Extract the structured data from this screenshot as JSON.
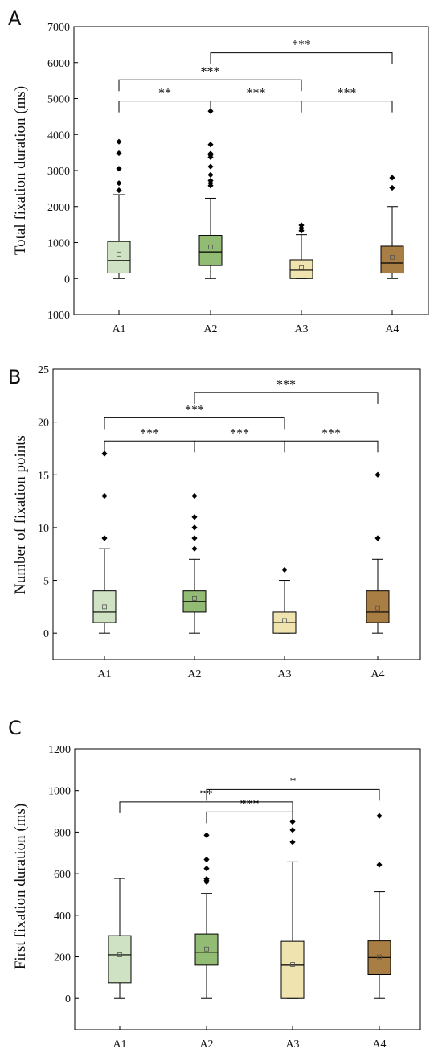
{
  "figure": {
    "colors": {
      "A1": "#cfe3c4",
      "A2": "#92bb73",
      "A3": "#efe3b0",
      "A4": "#a97e44",
      "outlier": "#000000",
      "axis": "#000000"
    }
  },
  "chart_data": [
    {
      "type": "box",
      "panel": "A",
      "ylabel": "Total fixation duration (ms)",
      "ylim": [
        -1000,
        7000
      ],
      "yticks": [
        "−1000",
        "0",
        "1000",
        "2000",
        "3000",
        "4000",
        "5000",
        "6000",
        "7000"
      ],
      "ytick_values": [
        -1000,
        0,
        1000,
        2000,
        3000,
        4000,
        5000,
        6000,
        7000
      ],
      "categories": [
        "A1",
        "A2",
        "A3",
        "A4"
      ],
      "boxes": [
        {
          "min": 0,
          "q1": 150,
          "median": 500,
          "q3": 1030,
          "max": 2330,
          "mean": 680,
          "outliers": [
            2450,
            2650,
            3050,
            3480,
            3800
          ]
        },
        {
          "min": 0,
          "q1": 360,
          "median": 740,
          "q3": 1200,
          "max": 2230,
          "mean": 880,
          "outliers": [
            2580,
            2650,
            2720,
            2880,
            3110,
            3370,
            3430,
            3470,
            3720,
            4650
          ]
        },
        {
          "min": 0,
          "q1": 0,
          "median": 230,
          "q3": 520,
          "max": 1220,
          "mean": 300,
          "outliers": [
            1330,
            1400,
            1480
          ]
        },
        {
          "min": 0,
          "q1": 150,
          "median": 430,
          "q3": 900,
          "max": 2000,
          "mean": 590,
          "outliers": [
            2520,
            2800
          ]
        }
      ],
      "significance": [
        {
          "from": 0,
          "to": 1,
          "label": "**",
          "y": 4930
        },
        {
          "from": 1,
          "to": 2,
          "label": "***",
          "y": 4930
        },
        {
          "from": 2,
          "to": 3,
          "label": "***",
          "y": 4930
        },
        {
          "from": 0,
          "to": 2,
          "label": "***",
          "y": 5520
        },
        {
          "from": 1,
          "to": 3,
          "label": "***",
          "y": 6270
        }
      ]
    },
    {
      "type": "box",
      "panel": "B",
      "ylabel": "Number of fixation points",
      "ylim": [
        -2.5,
        25
      ],
      "yticks": [
        "0",
        "5",
        "10",
        "15",
        "20",
        "25"
      ],
      "ytick_values": [
        0,
        5,
        10,
        15,
        20,
        25
      ],
      "categories": [
        "A1",
        "A2",
        "A3",
        "A4"
      ],
      "boxes": [
        {
          "min": 0,
          "q1": 1,
          "median": 2,
          "q3": 4,
          "max": 8,
          "mean": 2.5,
          "outliers": [
            9,
            13,
            17
          ]
        },
        {
          "min": 0,
          "q1": 2,
          "median": 3,
          "q3": 4,
          "max": 7,
          "mean": 3.3,
          "outliers": [
            8,
            9,
            10,
            11,
            13
          ]
        },
        {
          "min": 0,
          "q1": 0,
          "median": 1,
          "q3": 2,
          "max": 5,
          "mean": 1.2,
          "outliers": [
            6
          ]
        },
        {
          "min": 0,
          "q1": 1,
          "median": 2,
          "q3": 4,
          "max": 7,
          "mean": 2.4,
          "outliers": [
            9,
            15
          ]
        }
      ],
      "significance": [
        {
          "from": 0,
          "to": 1,
          "label": "***",
          "y": 18.2
        },
        {
          "from": 1,
          "to": 2,
          "label": "***",
          "y": 18.2
        },
        {
          "from": 2,
          "to": 3,
          "label": "***",
          "y": 18.2
        },
        {
          "from": 0,
          "to": 2,
          "label": "***",
          "y": 20.4
        },
        {
          "from": 1,
          "to": 3,
          "label": "***",
          "y": 22.8
        }
      ]
    },
    {
      "type": "box",
      "panel": "C",
      "ylabel": "First fixation duration (ms)",
      "ylim": [
        -150,
        1200
      ],
      "yticks": [
        "0",
        "200",
        "400",
        "600",
        "800",
        "1000",
        "1200"
      ],
      "ytick_values": [
        0,
        200,
        400,
        600,
        800,
        1000,
        1200
      ],
      "categories": [
        "A1",
        "A2",
        "A3",
        "A4"
      ],
      "boxes": [
        {
          "min": 0,
          "q1": 75,
          "median": 210,
          "q3": 302,
          "max": 577,
          "mean": 210,
          "outliers": []
        },
        {
          "min": 0,
          "q1": 160,
          "median": 222,
          "q3": 310,
          "max": 505,
          "mean": 238,
          "outliers": [
            560,
            567,
            575,
            625,
            668,
            785
          ]
        },
        {
          "min": 0,
          "q1": 0,
          "median": 160,
          "q3": 275,
          "max": 657,
          "mean": 163,
          "outliers": [
            752,
            810,
            850
          ]
        },
        {
          "min": 0,
          "q1": 115,
          "median": 197,
          "q3": 277,
          "max": 513,
          "mean": 200,
          "outliers": [
            643,
            878
          ]
        }
      ],
      "significance": [
        {
          "from": 1,
          "to": 2,
          "label": "***",
          "y": 897
        },
        {
          "from": 0,
          "to": 2,
          "label": "**",
          "y": 945
        },
        {
          "from": 1,
          "to": 3,
          "label": "*",
          "y": 1005
        }
      ]
    }
  ]
}
